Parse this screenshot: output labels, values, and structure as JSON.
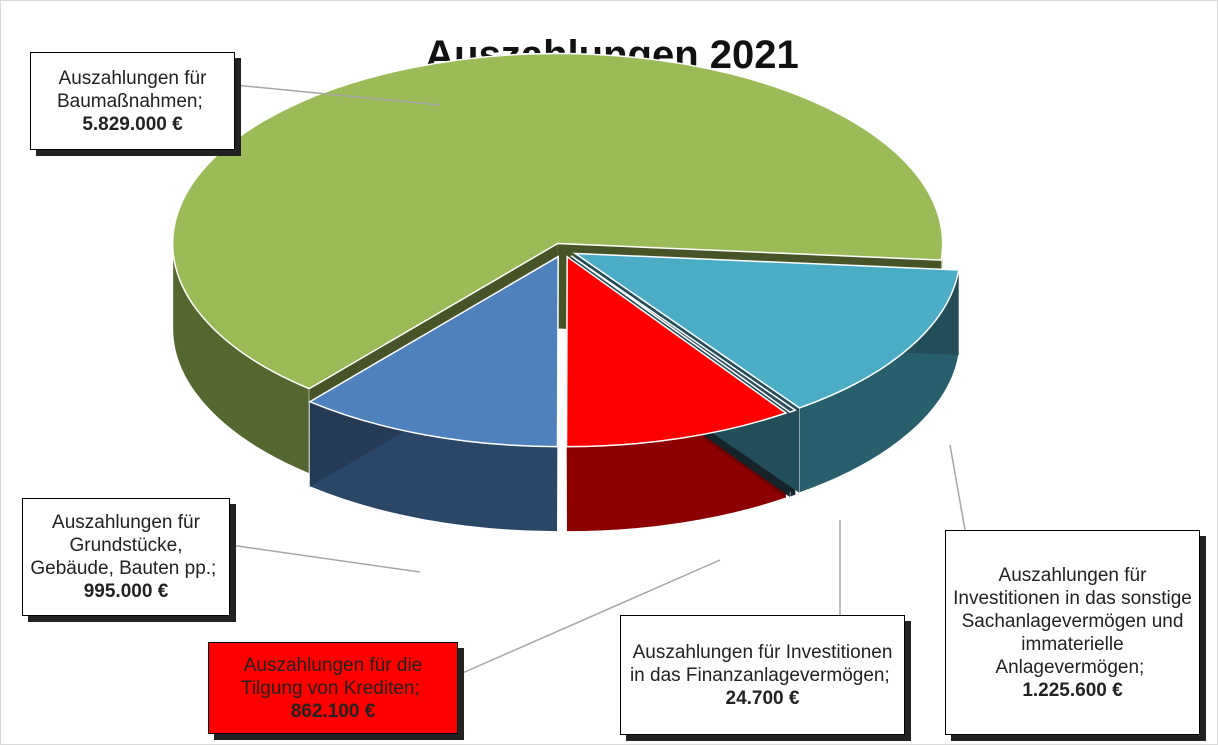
{
  "chart_data": {
    "type": "pie",
    "title": "Auszahlungen 2021",
    "categories": [
      "Auszahlungen für Baumaßnahmen;",
      "Auszahlungen für Grundstücke, Gebäude, Bauten pp.;",
      "Auszahlungen für die Tilgung von Krediten;",
      "Auszahlungen für Investitionen in das Finanzanlagevermögen;",
      "Auszahlungen für Investitionen in das sonstige Sachanlagevermögen und immaterielle Anlagevermögen;"
    ],
    "values": [
      5829000,
      995000,
      862100,
      24700,
      1225600
    ],
    "value_labels": [
      "5.829.000 €",
      "995.000 €",
      "862.100 €",
      "24.700 €",
      "1.225.600 €"
    ],
    "colors": [
      "#9bbb59",
      "#4f81bd",
      "#ff0000",
      "#2f4f5f",
      "#4bacc6"
    ]
  }
}
